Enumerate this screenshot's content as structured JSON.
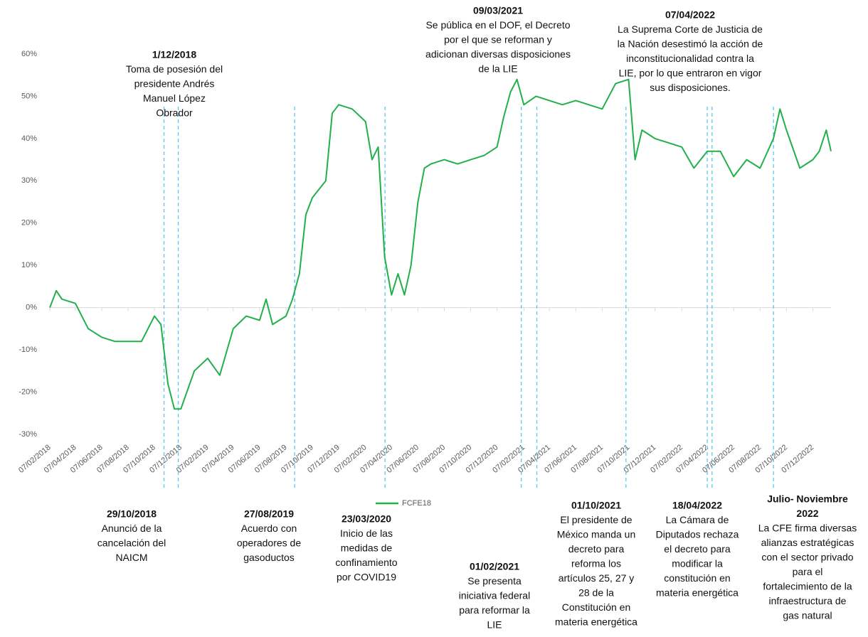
{
  "chart_data": {
    "type": "line",
    "x": [
      "07/02/2018",
      "22/02/2018",
      "07/03/2018",
      "07/04/2018",
      "07/05/2018",
      "07/06/2018",
      "07/07/2018",
      "07/08/2018",
      "07/09/2018",
      "07/10/2018",
      "22/10/2018",
      "07/11/2018",
      "22/11/2018",
      "07/12/2018",
      "07/01/2019",
      "07/02/2019",
      "07/03/2019",
      "07/04/2019",
      "07/05/2019",
      "07/06/2019",
      "22/06/2019",
      "07/07/2019",
      "07/08/2019",
      "22/08/2019",
      "07/09/2019",
      "22/09/2019",
      "07/10/2019",
      "07/11/2019",
      "22/11/2019",
      "07/12/2019",
      "07/01/2020",
      "07/02/2020",
      "22/02/2020",
      "07/03/2020",
      "22/03/2020",
      "07/04/2020",
      "22/04/2020",
      "07/05/2020",
      "22/05/2020",
      "07/06/2020",
      "22/06/2020",
      "07/07/2020",
      "07/08/2020",
      "07/09/2020",
      "07/10/2020",
      "07/11/2020",
      "07/12/2020",
      "22/12/2020",
      "07/01/2021",
      "22/01/2021",
      "07/02/2021",
      "07/03/2021",
      "07/04/2021",
      "07/05/2021",
      "07/06/2021",
      "07/07/2021",
      "07/08/2021",
      "07/09/2021",
      "07/10/2021",
      "22/10/2021",
      "07/11/2021",
      "07/12/2021",
      "07/01/2022",
      "07/02/2022",
      "07/03/2022",
      "07/04/2022",
      "07/05/2022",
      "07/06/2022",
      "07/07/2022",
      "07/08/2022",
      "07/09/2022",
      "22/09/2022",
      "07/10/2022",
      "07/11/2022",
      "07/12/2022",
      "22/12/2022",
      "07/01/2023",
      "18/01/2023"
    ],
    "series": [
      {
        "name": "FCFE18",
        "color": "#22b04b",
        "values": [
          0,
          4,
          2,
          1,
          -5,
          -7,
          -8,
          -8,
          -8,
          -2,
          -4,
          -18,
          -24,
          -24,
          -15,
          -12,
          -16,
          -5,
          -2,
          -3,
          2,
          -4,
          -2,
          2,
          8,
          22,
          26,
          30,
          46,
          48,
          47,
          44,
          35,
          38,
          12,
          3,
          8,
          3,
          10,
          25,
          33,
          34,
          35,
          34,
          35,
          36,
          38,
          45,
          51,
          54,
          48,
          50,
          49,
          48,
          49,
          48,
          47,
          53,
          54,
          35,
          42,
          40,
          39,
          38,
          33,
          37,
          37,
          31,
          35,
          33,
          40,
          47,
          42,
          33,
          35,
          37,
          42,
          37
        ]
      }
    ],
    "xlim": [
      "07/02/2018",
      "18/01/2023"
    ],
    "xticks": [
      "07/02/2018",
      "07/04/2018",
      "07/06/2018",
      "07/08/2018",
      "07/10/2018",
      "07/12/2018",
      "07/02/2019",
      "07/04/2019",
      "07/06/2019",
      "07/08/2019",
      "07/10/2019",
      "07/12/2019",
      "07/02/2020",
      "07/04/2020",
      "07/06/2020",
      "07/08/2020",
      "07/10/2020",
      "07/12/2020",
      "07/02/2021",
      "07/04/2021",
      "07/06/2021",
      "07/08/2021",
      "07/10/2021",
      "07/12/2021",
      "07/02/2022",
      "07/04/2022",
      "07/06/2022",
      "07/08/2022",
      "07/10/2022",
      "07/12/2022"
    ],
    "ylim": [
      -30,
      60
    ],
    "yticks": [
      {
        "value": -30,
        "label": "-30%"
      },
      {
        "value": -20,
        "label": "-20%"
      },
      {
        "value": -10,
        "label": "-10%"
      },
      {
        "value": 0,
        "label": "0%"
      },
      {
        "value": 10,
        "label": "10%"
      },
      {
        "value": 20,
        "label": "20%"
      },
      {
        "value": 30,
        "label": "30%"
      },
      {
        "value": 40,
        "label": "40%"
      },
      {
        "value": 50,
        "label": "50%"
      },
      {
        "value": 60,
        "label": "60%"
      }
    ],
    "annotations": [
      {
        "title": [
          "1/12/2018"
        ],
        "lines": [
          "Toma de posesión del",
          "presidente Andrés",
          "Manuel López",
          "Obrador"
        ]
      },
      {
        "title": [
          "09/03/2021"
        ],
        "lines": [
          "Se pública en el DOF, el Decreto",
          "por el que se reforman y",
          "adicionan diversas disposiciones",
          "de la LIE"
        ]
      },
      {
        "title": [
          "07/04/2022"
        ],
        "lines": [
          "La Suprema Corte de Justicia de",
          "la Nación desestimó la acción de",
          "inconstitucionalidad contra la",
          "LIE, por lo que entraron en vigor",
          "sus disposiciones."
        ]
      },
      {
        "title": [
          "29/10/2018"
        ],
        "lines": [
          "Anunció de la",
          "cancelación del",
          "NAICM"
        ]
      },
      {
        "title": [
          "27/08/2019"
        ],
        "lines": [
          "Acuerdo con",
          "operadores de",
          "gasoductos"
        ]
      },
      {
        "title": [
          "23/03/2020"
        ],
        "lines": [
          "Inicio de las",
          "medidas de",
          "confinamiento",
          "por COVID19"
        ]
      },
      {
        "title": [
          "01/02/2021"
        ],
        "lines": [
          "Se presenta",
          "iniciativa federal",
          "para reformar la",
          "LIE"
        ]
      },
      {
        "title": [
          "01/10/2021"
        ],
        "lines": [
          "El presidente de",
          "México manda un",
          "decreto para",
          "reforma los",
          "artículos 25, 27 y",
          "28 de la",
          "Constitución en",
          "materia energética"
        ]
      },
      {
        "title": [
          "18/04/2022"
        ],
        "lines": [
          "La Cámara de",
          "Diputados rechaza",
          "el decreto para",
          "modificar la",
          "constitución en",
          "materia energética"
        ]
      },
      {
        "title": [
          "Julio- Noviembre",
          "2022"
        ],
        "x": "07/09/2022",
        "lines": [
          "La CFE firma diversas",
          "alianzas estratégicas",
          "con el sector privado",
          "para el",
          "fortalecimiento de la",
          "infraestructura de",
          "gas natural"
        ]
      }
    ]
  }
}
